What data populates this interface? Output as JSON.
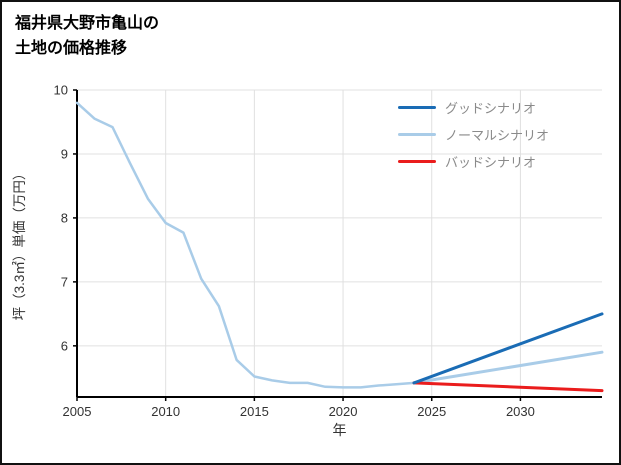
{
  "page": {
    "title_line1": "福井県大野市亀山の",
    "title_line2": "土地の価格推移"
  },
  "chart_data": {
    "type": "line",
    "title": "福井県大野市亀山の土地の価格推移",
    "xlabel": "年",
    "ylabel": "坪（3.3㎡）単価（万円）",
    "xlim": [
      2005,
      2034.6
    ],
    "ylim": [
      5.2,
      10
    ],
    "xticks": [
      2005,
      2010,
      2015,
      2020,
      2025,
      2030
    ],
    "yticks": [
      6,
      7,
      8,
      9,
      10
    ],
    "grid": true,
    "legend_position": "top-right",
    "axis_color": "#000000",
    "grid_color": "#e0e0e0",
    "tick_label_color": "#333333",
    "history": {
      "color": "#a9cce8",
      "x": [
        2005,
        2006,
        2007,
        2008,
        2009,
        2010,
        2011,
        2012,
        2013,
        2014,
        2015,
        2016,
        2017,
        2018,
        2019,
        2020,
        2021,
        2022,
        2023,
        2024
      ],
      "y": [
        9.8,
        9.55,
        9.42,
        8.85,
        8.3,
        7.92,
        7.77,
        7.05,
        6.62,
        5.78,
        5.52,
        5.46,
        5.42,
        5.42,
        5.36,
        5.35,
        5.35,
        5.38,
        5.4,
        5.42
      ]
    },
    "scenarios": [
      {
        "name": "グッドシナリオ",
        "color": "#1a6cb5",
        "x": [
          2024,
          2034.6
        ],
        "y": [
          5.42,
          6.5
        ]
      },
      {
        "name": "ノーマルシナリオ",
        "color": "#a9cce8",
        "x": [
          2024,
          2034.6
        ],
        "y": [
          5.42,
          5.9
        ]
      },
      {
        "name": "バッドシナリオ",
        "color": "#ea1c1c",
        "x": [
          2024,
          2034.6
        ],
        "y": [
          5.42,
          5.3
        ]
      }
    ]
  }
}
